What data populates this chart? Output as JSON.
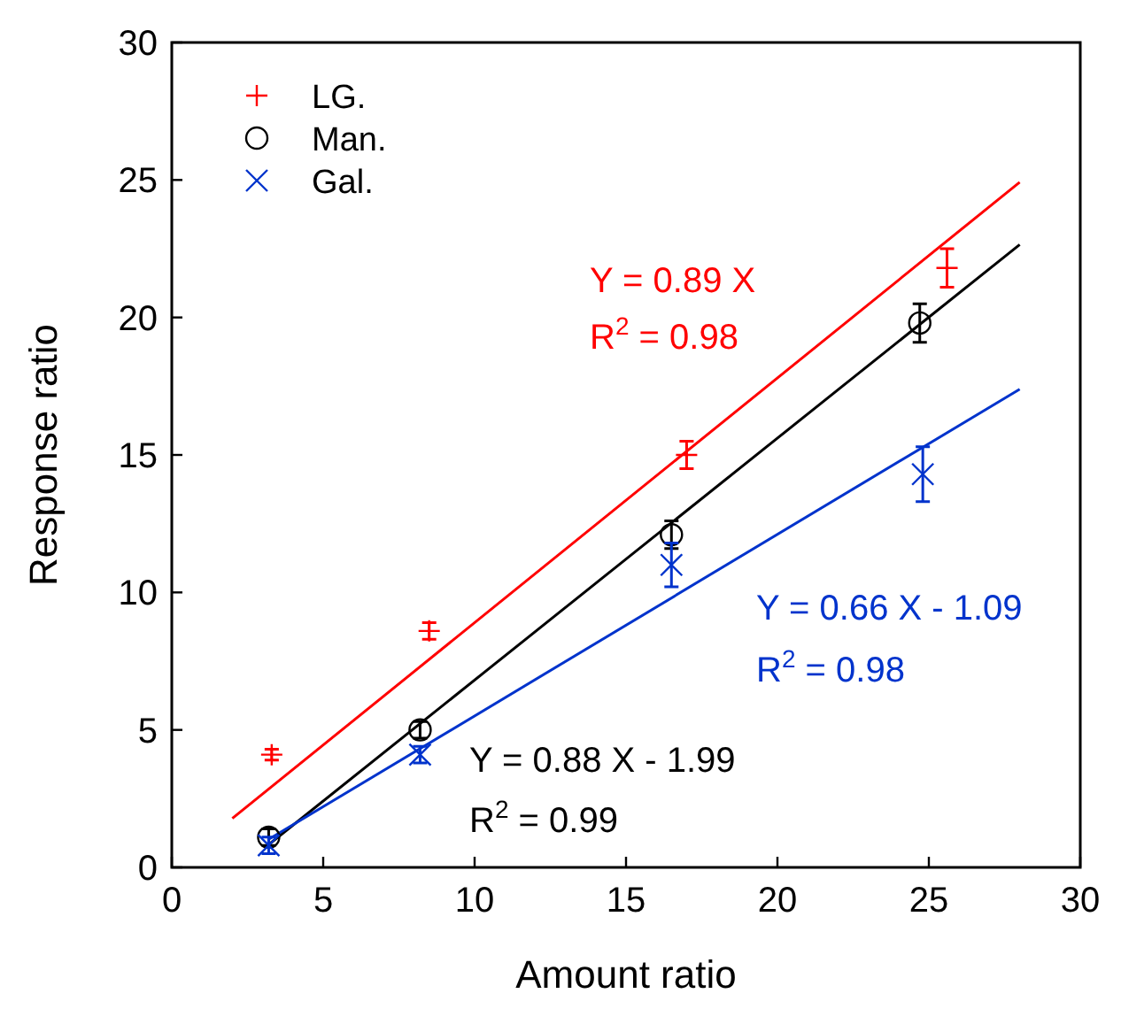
{
  "chart_data": {
    "type": "scatter",
    "xlabel": "Amount ratio",
    "ylabel": "Response ratio",
    "xlim": [
      0,
      30
    ],
    "xticks": [
      0,
      5,
      10,
      15,
      20,
      25,
      30
    ],
    "ylim": [
      0,
      30
    ],
    "yticks": [
      0,
      5,
      10,
      15,
      20,
      25,
      30
    ],
    "grid": false,
    "legend": "top left",
    "series": [
      {
        "name": "LG.",
        "marker": "plus",
        "color": "#ff0000",
        "x": [
          3.3,
          8.5,
          17.0,
          25.6
        ],
        "values": [
          4.1,
          8.6,
          15.0,
          21.8
        ],
        "errors": [
          0.2,
          0.3,
          0.5,
          0.7
        ]
      },
      {
        "name": "Man.",
        "marker": "circle",
        "color": "#000000",
        "x": [
          3.2,
          8.2,
          16.5,
          24.7
        ],
        "values": [
          1.1,
          5.0,
          12.1,
          19.8
        ],
        "errors": [
          0.3,
          0.3,
          0.5,
          0.7
        ]
      },
      {
        "name": "Gal.",
        "marker": "cross",
        "color": "#0033cc",
        "x": [
          3.2,
          8.2,
          16.5,
          24.8
        ],
        "values": [
          0.8,
          4.1,
          11.0,
          14.3
        ],
        "errors": [
          0.3,
          0.3,
          0.8,
          1.0
        ]
      },
      {
        "type": "line",
        "color": "#ff0000",
        "x": [
          2,
          28
        ],
        "values": [
          1.78,
          24.92
        ]
      },
      {
        "type": "line",
        "color": "#000000",
        "x": [
          3.2,
          28
        ],
        "values": [
          0.83,
          22.65
        ]
      },
      {
        "type": "line",
        "color": "#0033cc",
        "x": [
          3.2,
          28
        ],
        "values": [
          1.02,
          17.39
        ]
      }
    ],
    "annotations": [
      "Y = 0.89 X",
      "R$^{2}$ = 0.98",
      "Y = 0.88 X - 1.99",
      "R$^{2}$ = 0.99",
      "Y = 0.66 X - 1.09",
      "R$^{2}$ = 0.98"
    ]
  }
}
